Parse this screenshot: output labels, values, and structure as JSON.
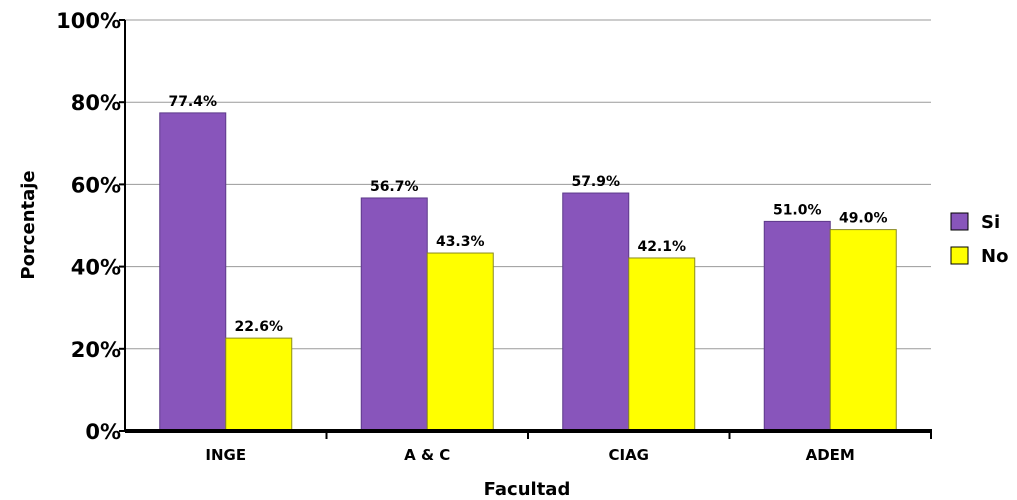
{
  "chart_data": {
    "type": "bar",
    "categories": [
      "INGE",
      "A & C",
      "CIAG",
      "ADEM"
    ],
    "series": [
      {
        "name": "Si",
        "values": [
          77.4,
          56.7,
          57.9,
          51.0
        ],
        "color": "#8855BB",
        "labels": [
          "77.4%",
          "56.7%",
          "57.9%",
          "51.0%"
        ]
      },
      {
        "name": "No",
        "values": [
          22.6,
          43.3,
          42.1,
          49.0
        ],
        "color": "#FFFF00",
        "labels": [
          "22.6%",
          "43.3%",
          "42.1%",
          "49.0%"
        ]
      }
    ],
    "xlabel": "Facultad",
    "ylabel": "Porcentaje",
    "ylim": [
      0,
      100
    ],
    "yticks": [
      "0%",
      "20%",
      "40%",
      "60%",
      "80%",
      "100%"
    ],
    "grid": true,
    "legend_position": "right"
  }
}
